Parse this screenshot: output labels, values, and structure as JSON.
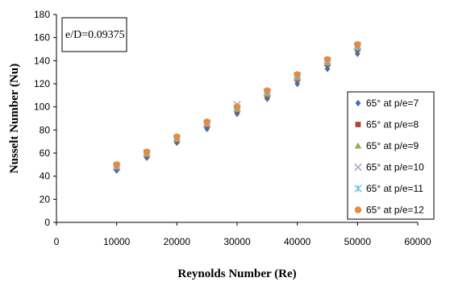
{
  "chart_data": {
    "type": "scatter",
    "xlabel": "Reynolds Number (Re)",
    "ylabel": "Nusselt Number (Nu)",
    "annotation": "e/D=0.09375",
    "xlim": [
      0,
      60000
    ],
    "ylim": [
      0,
      180
    ],
    "x_ticks": [
      "0",
      "10000",
      "20000",
      "30000",
      "40000",
      "50000",
      "60000"
    ],
    "y_ticks": [
      "0",
      "20",
      "40",
      "60",
      "80",
      "100",
      "120",
      "140",
      "160",
      "180"
    ],
    "grid": false,
    "legend_position": "right",
    "x": [
      10000,
      15000,
      20000,
      25000,
      30000,
      35000,
      40000,
      45000,
      50000
    ],
    "series": [
      {
        "name": "65° at p/e=7",
        "marker": "diamond",
        "color": "#3f6fb5",
        "values": [
          45,
          56,
          69,
          81,
          94,
          107,
          120,
          133,
          146
        ]
      },
      {
        "name": "65° at p/e=8",
        "marker": "square",
        "color": "#b5413e",
        "values": [
          47,
          58,
          71,
          84,
          97,
          110,
          124,
          137,
          150
        ]
      },
      {
        "name": "65° at p/e=9",
        "marker": "triangle",
        "color": "#8cb04a",
        "values": [
          48,
          59,
          72,
          85,
          98,
          111,
          125,
          138,
          151
        ]
      },
      {
        "name": "65° at p/e=10",
        "marker": "x",
        "color": "#9aa2c4",
        "values": [
          48,
          60,
          73,
          85,
          102,
          112,
          126,
          139,
          152
        ]
      },
      {
        "name": "65° at p/e=11",
        "marker": "star",
        "color": "#6fc0e0",
        "values": [
          49,
          60,
          73,
          86,
          99,
          113,
          127,
          140,
          153
        ]
      },
      {
        "name": "65° at p/e=12",
        "marker": "circle",
        "color": "#e68a3c",
        "values": [
          50,
          61,
          74,
          87,
          100,
          114,
          128,
          141,
          154
        ]
      }
    ]
  }
}
